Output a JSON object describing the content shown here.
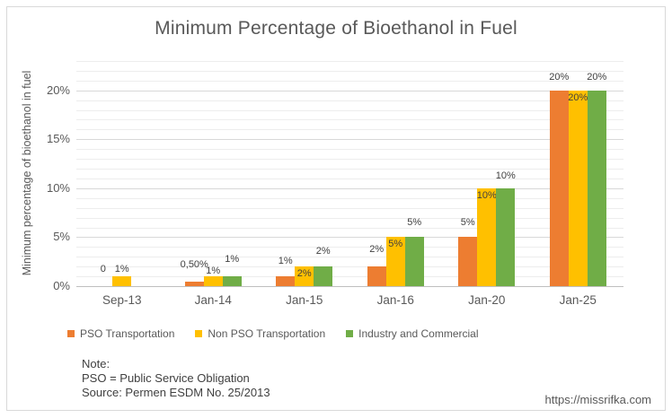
{
  "chart_data": {
    "type": "bar",
    "title": "Minimum Percentage of Bioethanol in Fuel",
    "ylabel": "Minimum percentage of bioethanol in fuel",
    "xlabel": "",
    "categories": [
      "Sep-13",
      "Jan-14",
      "Jan-15",
      "Jan-16",
      "Jan-20",
      "Jan-25"
    ],
    "series": [
      {
        "name": "PSO Transportation",
        "color": "#ED7D31",
        "values": [
          0,
          0.5,
          1,
          2,
          5,
          20
        ],
        "labels": [
          "0",
          "0,50%",
          "1%",
          "2%",
          "5%",
          "20%"
        ],
        "label_inside": [
          false,
          false,
          false,
          false,
          false,
          false
        ],
        "label_offsets": [
          12,
          12,
          10,
          12,
          9,
          8
        ]
      },
      {
        "name": "Non PSO Transportation",
        "color": "#FFC000",
        "values": [
          1,
          1,
          2,
          5,
          10,
          20
        ],
        "labels": [
          "1%",
          "1%",
          "2%",
          "5%",
          "10%",
          "20%"
        ],
        "label_inside": [
          false,
          false,
          true,
          true,
          true,
          true
        ],
        "label_offsets": [
          1,
          -1,
          0,
          0,
          0,
          0
        ]
      },
      {
        "name": "Industry and Commercial",
        "color": "#70AD47",
        "values": [
          null,
          1,
          2,
          5,
          10,
          20
        ],
        "labels": [
          null,
          "1%",
          "2%",
          "5%",
          "10%",
          "20%"
        ],
        "label_inside": [
          false,
          false,
          false,
          false,
          false,
          false
        ],
        "label_offsets": [
          0,
          12,
          10,
          9,
          7,
          8
        ]
      }
    ],
    "y_axis": {
      "ticks": [
        "0%",
        "5%",
        "10%",
        "15%",
        "20%"
      ],
      "tick_values": [
        0,
        5,
        10,
        15,
        20
      ],
      "max_value": 23,
      "major_unit": 5,
      "minor_unit": 1,
      "grid": true
    },
    "legend_position": "bottom-left",
    "number_format_note": "decimal comma locale (0,50%)"
  },
  "note": {
    "lines": [
      "Note:",
      "PSO = Public Service Obligation",
      "Source: Permen ESDM No. 25/2013"
    ]
  },
  "watermark": "https://missrifka.com"
}
